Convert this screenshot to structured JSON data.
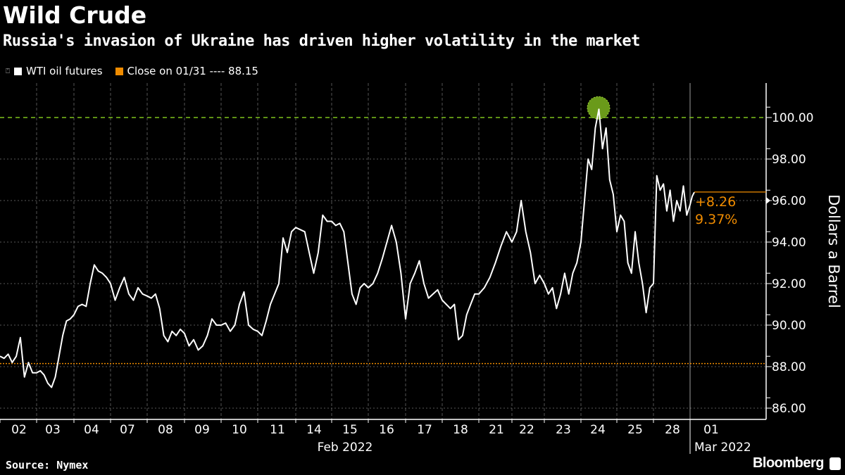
{
  "header": {
    "title": "Wild Crude",
    "subtitle": "Russia's invasion of Ukraine has driven higher volatility in the market"
  },
  "legend": [
    {
      "label": "WTI oil futures",
      "color": "#ffffff"
    },
    {
      "label": "Close on 01/31 ---- 88.15",
      "color": "#f08c00"
    }
  ],
  "footer": {
    "source": "Source: Nymex",
    "brand": "Bloomberg"
  },
  "chart_data": {
    "type": "line",
    "ylabel": "Dollars a Barrel",
    "ylim": [
      85.5,
      101.5
    ],
    "yticks": [
      "86.00",
      "88.00",
      "90.00",
      "92.00",
      "94.00",
      "96.00",
      "98.00",
      "100.00"
    ],
    "xticks": [
      "02",
      "03",
      "04",
      "07",
      "08",
      "09",
      "10",
      "11",
      "14",
      "15",
      "16",
      "17",
      "18",
      "21",
      "22",
      "23",
      "24",
      "25",
      "28",
      "01"
    ],
    "month_labels": [
      {
        "label": "Feb 2022",
        "center_tick": "14"
      },
      {
        "label": "Mar 2022",
        "start_tick": "01"
      }
    ],
    "grid": true,
    "reference_lines": [
      {
        "value": 100,
        "color": "#7fc31c",
        "style": "dashed"
      },
      {
        "value": 88.15,
        "color": "#f08c00",
        "style": "dotted",
        "label": "Close on 01/31"
      }
    ],
    "highlight": {
      "date": "2022-02-24",
      "value": 100.4,
      "color": "#6a9a1a"
    },
    "annotation": {
      "change": "+8.26",
      "percent": "9.37%",
      "last_value": 96.41,
      "color": "#f08c00"
    },
    "colors": {
      "line": "#ffffff",
      "grid": "#777777"
    },
    "series": [
      {
        "name": "WTI oil futures",
        "days": [
          {
            "date": "2022-02-02",
            "values": [
              88.5,
              88.4,
              88.6,
              88.2,
              88.5,
              89.4,
              87.5,
              88.2,
              87.7
            ]
          },
          {
            "date": "2022-02-03",
            "values": [
              87.7,
              87.8,
              87.6,
              87.2,
              87.0,
              87.5,
              88.5,
              89.5,
              90.2,
              90.3
            ]
          },
          {
            "date": "2022-02-04",
            "values": [
              90.5,
              90.9,
              91.0,
              90.9,
              92.0,
              92.9,
              92.6,
              92.5,
              92.3
            ]
          },
          {
            "date": "2022-02-07",
            "values": [
              92.0,
              91.2,
              91.8,
              92.3,
              91.5,
              91.2,
              91.8,
              91.5
            ]
          },
          {
            "date": "2022-02-08",
            "values": [
              91.4,
              91.3,
              91.5,
              90.8,
              89.5,
              89.2,
              89.7,
              89.5,
              89.8
            ]
          },
          {
            "date": "2022-02-09",
            "values": [
              89.6,
              89.0,
              89.3,
              88.8,
              89.0,
              89.5,
              90.3,
              90.0
            ]
          },
          {
            "date": "2022-02-10",
            "values": [
              90.0,
              90.1,
              89.7,
              90.0,
              91.0,
              91.6,
              90.0,
              89.8
            ]
          },
          {
            "date": "2022-02-11",
            "values": [
              89.7,
              89.5,
              90.2,
              91.0,
              91.5,
              92.0,
              94.2,
              93.5,
              94.5
            ]
          },
          {
            "date": "2022-02-14",
            "values": [
              94.7,
              94.6,
              94.5,
              93.5,
              92.5,
              93.5,
              95.3,
              95.0
            ]
          },
          {
            "date": "2022-02-15",
            "values": [
              95.0,
              94.8,
              94.9,
              94.5,
              93.0,
              91.5,
              91.0,
              91.8,
              92.0
            ]
          },
          {
            "date": "2022-02-16",
            "values": [
              91.8,
              92.0,
              92.5,
              93.2,
              94.0,
              94.8,
              94.0,
              92.5
            ]
          },
          {
            "date": "2022-02-17",
            "values": [
              90.3,
              92.0,
              92.5,
              93.1,
              92.0,
              91.3,
              91.5,
              91.7
            ]
          },
          {
            "date": "2022-02-18",
            "values": [
              91.2,
              91.0,
              90.8,
              91.0,
              89.3,
              89.5,
              90.5,
              91.0,
              91.5
            ]
          },
          {
            "date": "2022-02-21",
            "values": [
              91.5,
              91.8,
              92.3,
              93.0,
              93.8,
              94.5
            ]
          },
          {
            "date": "2022-02-22",
            "values": [
              94.0,
              94.5,
              96.0,
              94.5,
              93.5,
              92.0,
              92.4
            ]
          },
          {
            "date": "2022-02-23",
            "values": [
              92.0,
              91.5,
              91.8,
              90.8,
              91.5,
              92.5,
              91.5,
              92.5,
              93.0
            ]
          },
          {
            "date": "2022-02-24",
            "values": [
              94.0,
              96.0,
              98.0,
              97.5,
              99.5,
              100.4,
              98.5,
              99.5,
              97.0,
              96.3
            ]
          },
          {
            "date": "2022-02-25",
            "values": [
              94.5,
              95.3,
              95.0,
              93.0,
              92.5,
              94.5,
              93.0,
              92.0,
              90.6,
              91.8
            ]
          },
          {
            "date": "2022-02-28",
            "values": [
              92.0,
              97.2,
              96.5,
              96.8,
              95.5,
              96.5,
              95.0,
              96.0,
              95.5,
              96.7,
              95.3
            ]
          },
          {
            "date": "2022-03-01",
            "values": [
              95.8,
              96.2,
              96.4
            ]
          }
        ]
      }
    ]
  }
}
